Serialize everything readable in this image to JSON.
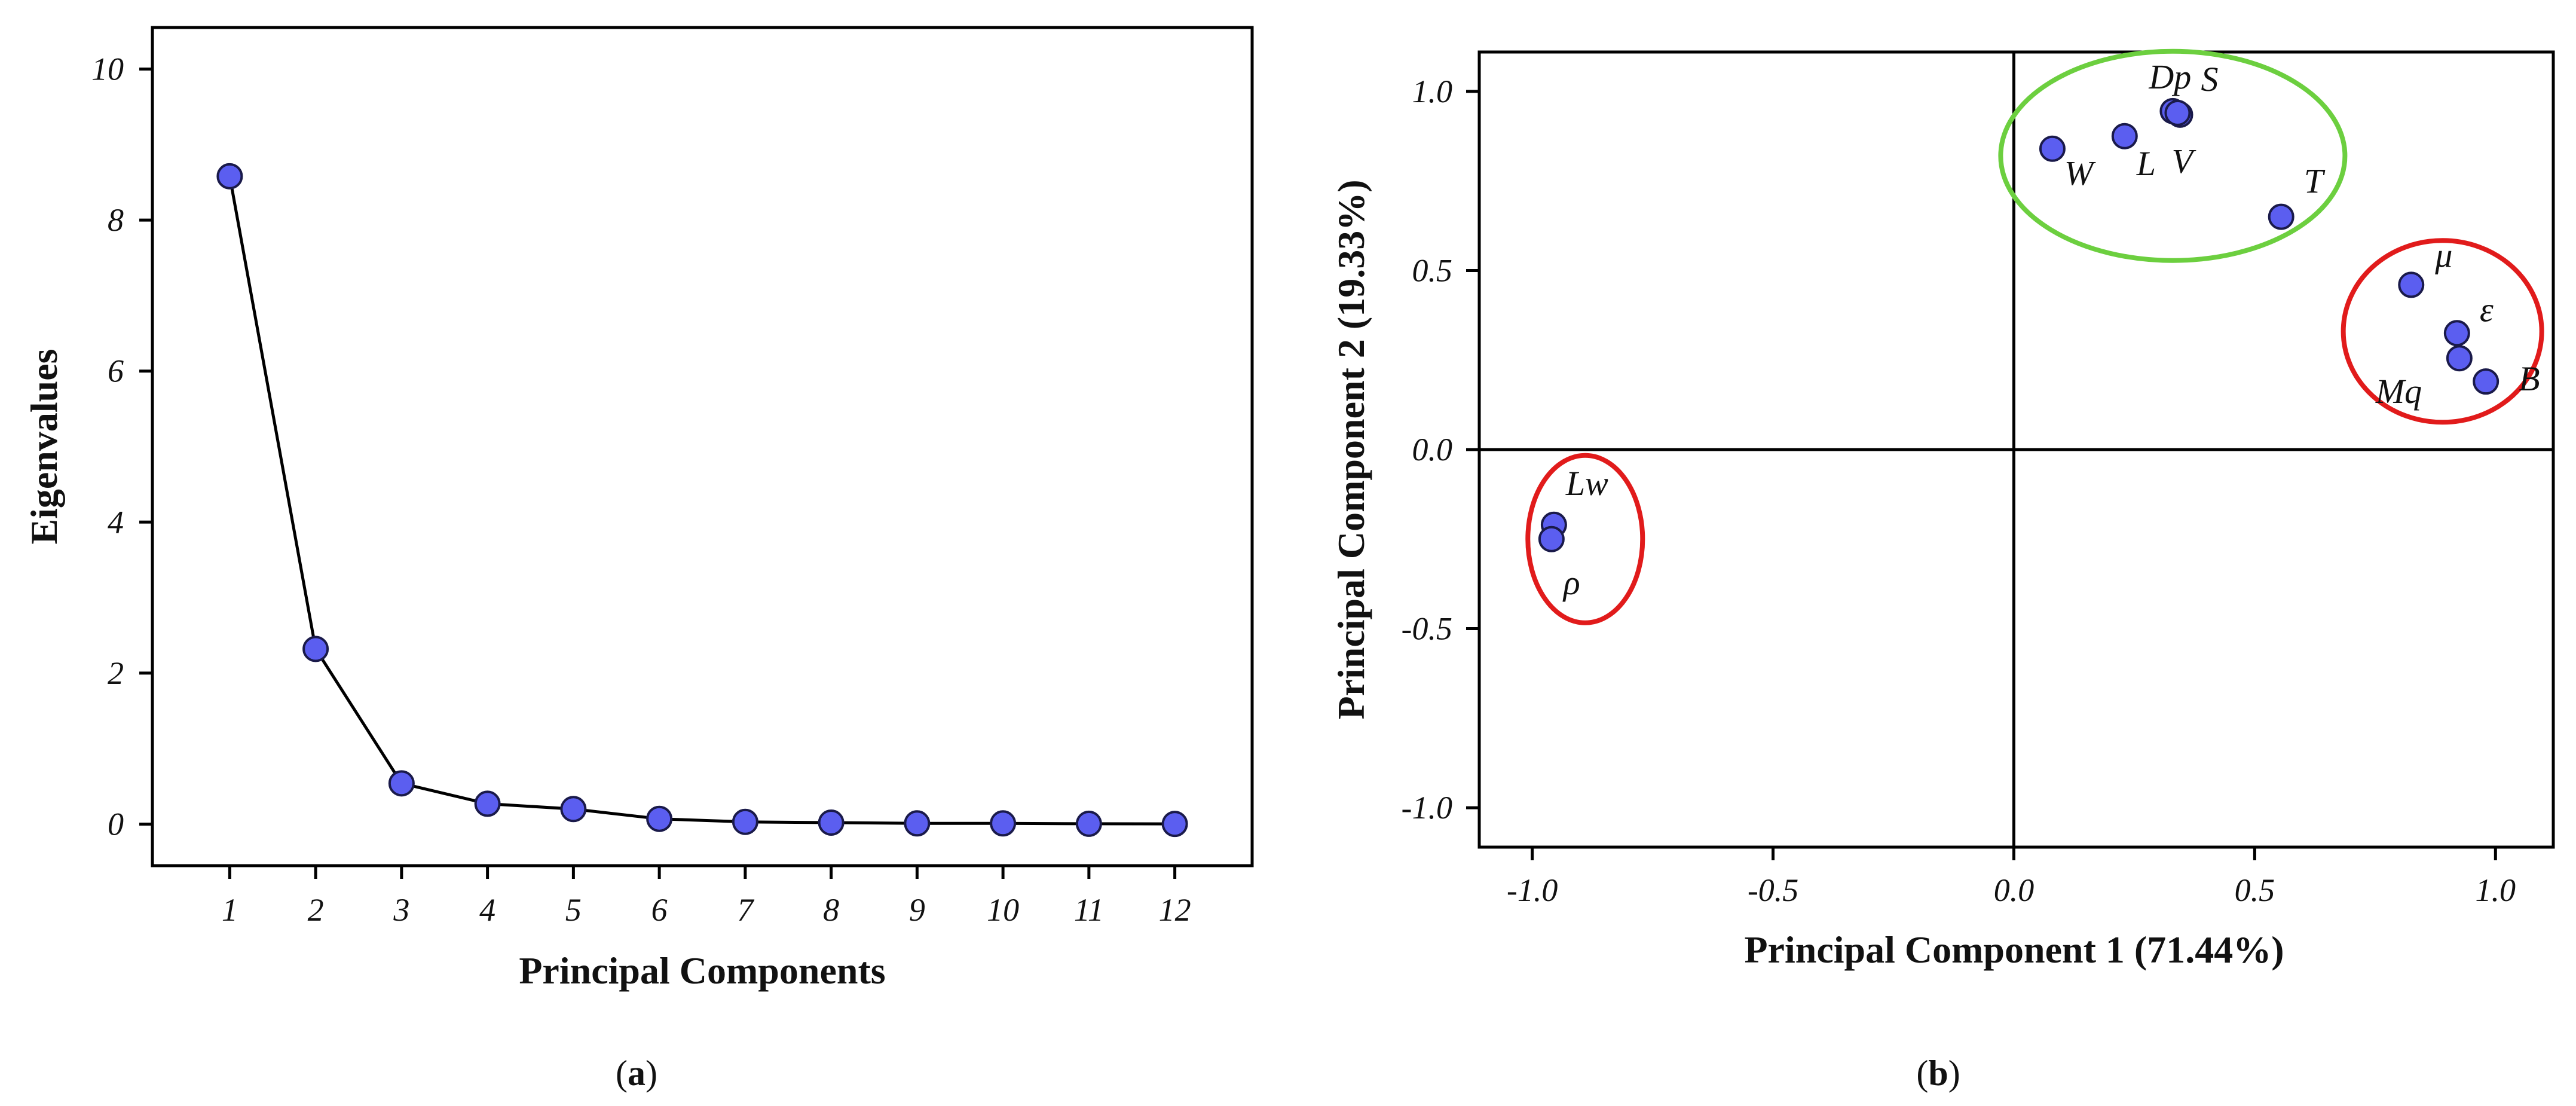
{
  "colors": {
    "marker": "#5b5ef0",
    "marker_edge": "#1a1a4a",
    "green_cluster": "#6ccf3f",
    "red_cluster": "#e11b1b"
  },
  "chart_data": [
    {
      "type": "line",
      "panel_label_open": "(",
      "panel_label": "a",
      "panel_label_close": ")",
      "xlabel": "Principal Components",
      "ylabel": "Eigenvalues",
      "x": [
        1,
        2,
        3,
        4,
        5,
        6,
        7,
        8,
        9,
        10,
        11,
        12
      ],
      "values": [
        8.58,
        2.32,
        0.54,
        0.27,
        0.2,
        0.07,
        0.03,
        0.02,
        0.01,
        0.01,
        0.005,
        0.003
      ],
      "ylim": [
        -0.55,
        10.55
      ],
      "xlim": [
        0.1,
        12.9
      ],
      "yticks": [
        "0",
        "2",
        "4",
        "6",
        "8",
        "10"
      ],
      "xticks": [
        "1",
        "2",
        "3",
        "4",
        "5",
        "6",
        "7",
        "8",
        "9",
        "10",
        "11",
        "12"
      ],
      "grid": false
    },
    {
      "type": "scatter",
      "panel_label_open": "(",
      "panel_label": "b",
      "panel_label_close": ")",
      "xlabel": "Principal Component 1 (71.44%)",
      "ylabel": "Principal Component 2 (19.33%)",
      "xlim": [
        -1.11,
        1.12
      ],
      "ylim": [
        -1.11,
        1.11
      ],
      "xticks": [
        "-1.0",
        "-0.5",
        "0.0",
        "0.5",
        "1.0"
      ],
      "yticks": [
        "-1.0",
        "-0.5",
        "0.0",
        "0.5",
        "1.0"
      ],
      "grid": false,
      "points": [
        {
          "label": "Dp",
          "x": 0.33,
          "y": 0.945
        },
        {
          "label": "S",
          "x": 0.345,
          "y": 0.935
        },
        {
          "label": "W",
          "x": 0.08,
          "y": 0.84
        },
        {
          "label": "L",
          "x": 0.23,
          "y": 0.875
        },
        {
          "label": "V",
          "x": 0.34,
          "y": 0.94
        },
        {
          "label": "T",
          "x": 0.555,
          "y": 0.65
        },
        {
          "label": "μ",
          "x": 0.825,
          "y": 0.46
        },
        {
          "label": "ε",
          "x": 0.92,
          "y": 0.325
        },
        {
          "label": "Mq",
          "x": 0.925,
          "y": 0.255
        },
        {
          "label": "B",
          "x": 0.98,
          "y": 0.19
        },
        {
          "label": "Lw",
          "x": -0.955,
          "y": -0.21
        },
        {
          "label": "ρ",
          "x": -0.96,
          "y": -0.25
        }
      ],
      "clusters": [
        {
          "name": "green",
          "cx": 0.33,
          "cy": 0.82
        },
        {
          "name": "red-right",
          "cx": 0.89,
          "cy": 0.33
        },
        {
          "name": "red-left",
          "cx": -0.89,
          "cy": -0.25
        }
      ]
    }
  ]
}
